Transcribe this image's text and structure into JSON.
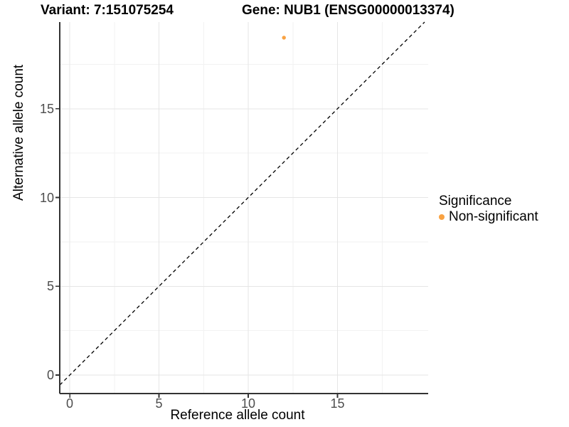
{
  "chart_data": {
    "type": "scatter",
    "titles": [
      "Variant: 7:151075254",
      "Gene: NUB1 (ENSG00000013374)"
    ],
    "xlabel": "Reference allele count",
    "ylabel": "Alternative allele count",
    "x_ticks": [
      0,
      5,
      10,
      15
    ],
    "y_ticks": [
      0,
      5,
      10,
      15
    ],
    "x_minor_ticks": [
      2.5,
      7.5,
      12.5,
      17.5
    ],
    "y_minor_ticks": [
      2.5,
      7.5,
      12.5,
      17.5
    ],
    "xlim": [
      -0.56,
      20.08
    ],
    "ylim": [
      -1.04,
      19.88
    ],
    "grid": "major and minor gridlines, white panel background",
    "reference_line": {
      "type": "identity",
      "slope": 1,
      "intercept": 0,
      "style": "dashed",
      "color": "#000000"
    },
    "series": [
      {
        "name": "Non-significant",
        "color": "#F9A242",
        "points": [
          {
            "x": 12,
            "y": 19
          }
        ]
      }
    ],
    "legend": {
      "title": "Significance",
      "position": "right",
      "items": [
        {
          "label": "Non-significant",
          "color": "#F9A242"
        }
      ]
    },
    "style": {
      "axis_line_color": "#333333",
      "tick_color": "#333333",
      "tick_label_color": "#4d4d4d",
      "major_grid_color": "#e5e5e5",
      "minor_grid_color": "#f2f2f2",
      "background": "#ffffff"
    }
  }
}
